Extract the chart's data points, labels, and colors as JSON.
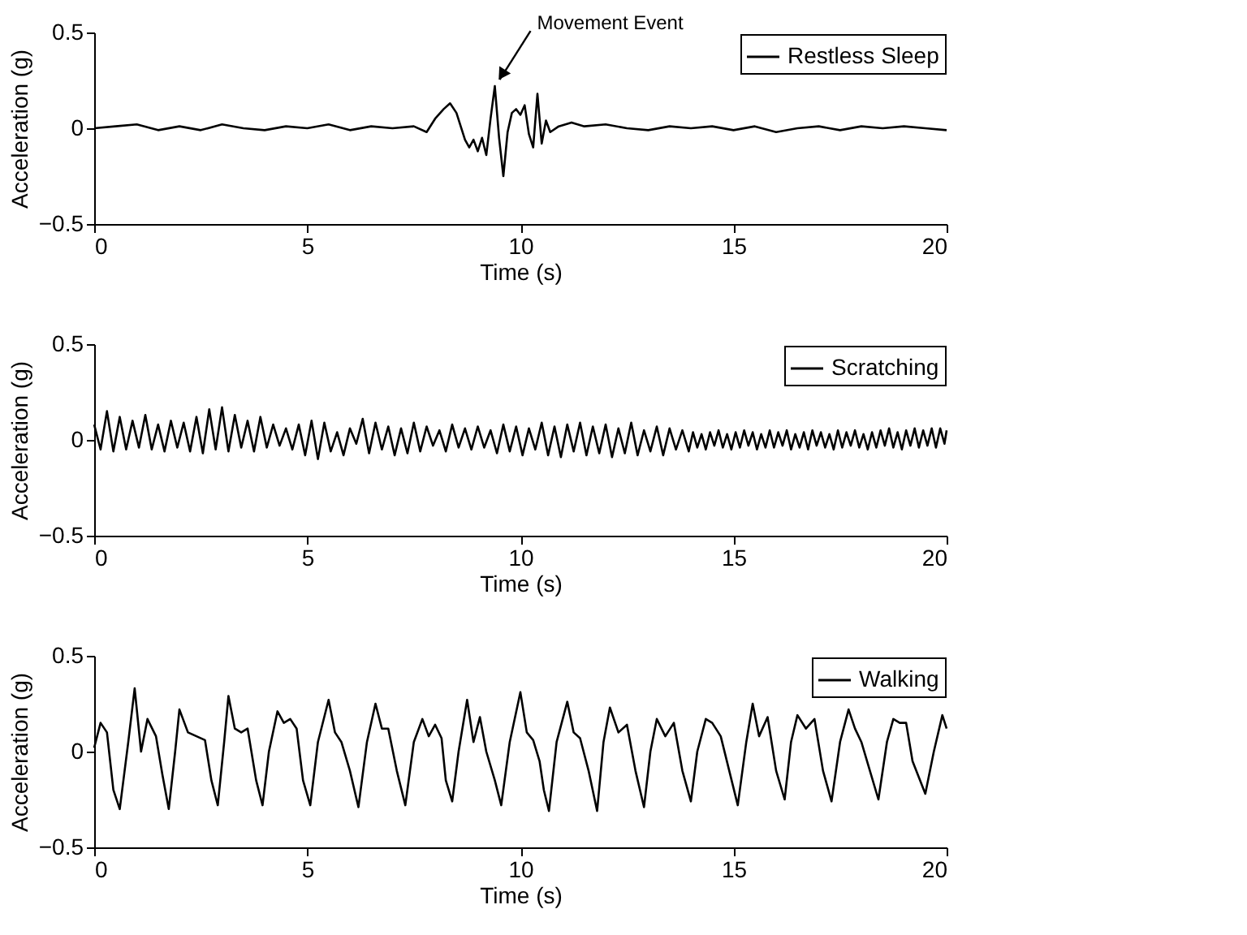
{
  "chart_data": [
    {
      "type": "line",
      "xlabel": "Time (s)",
      "ylabel": "Acceleration (g)",
      "xlim": [
        0,
        20
      ],
      "xticks": [
        0,
        5,
        10,
        15,
        20
      ],
      "ylim": [
        -0.5,
        0.5
      ],
      "yticks": [
        -0.5,
        0,
        0.5
      ],
      "grid": false,
      "legend": "top right",
      "annotations": [
        {
          "text": "Movement Event",
          "x": 9.4,
          "y": 0.22
        }
      ],
      "series": [
        {
          "name": "Restless Sleep",
          "color": "#000000",
          "x": [
            0,
            0.5,
            1.0,
            1.5,
            2.0,
            2.5,
            3.0,
            3.5,
            4.0,
            4.5,
            5.0,
            5.5,
            6.0,
            6.5,
            7.0,
            7.5,
            7.8,
            8.0,
            8.2,
            8.35,
            8.5,
            8.7,
            8.8,
            8.9,
            9.0,
            9.1,
            9.2,
            9.3,
            9.4,
            9.5,
            9.6,
            9.7,
            9.8,
            9.9,
            10.0,
            10.1,
            10.2,
            10.3,
            10.4,
            10.5,
            10.6,
            10.7,
            10.9,
            11.2,
            11.5,
            12,
            12.5,
            13,
            13.5,
            14,
            14.5,
            15,
            15.5,
            16,
            16.5,
            17,
            17.5,
            18,
            18.5,
            19,
            19.5,
            20
          ],
          "values": [
            0,
            0.01,
            0.02,
            -0.01,
            0.01,
            -0.01,
            0.02,
            0,
            -0.01,
            0.01,
            0,
            0.02,
            -0.01,
            0.01,
            0,
            0.01,
            -0.02,
            0.05,
            0.1,
            0.13,
            0.08,
            -0.06,
            -0.1,
            -0.06,
            -0.12,
            -0.05,
            -0.14,
            0.05,
            0.22,
            -0.05,
            -0.25,
            -0.02,
            0.08,
            0.1,
            0.07,
            0.12,
            -0.03,
            -0.1,
            0.18,
            -0.08,
            0.04,
            -0.02,
            0.01,
            0.03,
            0.01,
            0.02,
            0,
            -0.01,
            0.01,
            0,
            0.01,
            -0.01,
            0.01,
            -0.02,
            0,
            0.01,
            -0.01,
            0.01,
            0,
            0.01,
            0,
            -0.01
          ]
        }
      ]
    },
    {
      "type": "line",
      "xlabel": "Time (s)",
      "ylabel": "Acceleration (g)",
      "xlim": [
        0,
        20
      ],
      "xticks": [
        0,
        5,
        10,
        15,
        20
      ],
      "ylim": [
        -0.5,
        0.5
      ],
      "yticks": [
        -0.5,
        0,
        0.5
      ],
      "grid": false,
      "legend": "top right",
      "series": [
        {
          "name": "Scratching",
          "color": "#000000",
          "x": [
            0,
            0.15,
            0.3,
            0.45,
            0.6,
            0.75,
            0.9,
            1.05,
            1.2,
            1.35,
            1.5,
            1.65,
            1.8,
            1.95,
            2.1,
            2.25,
            2.4,
            2.55,
            2.7,
            2.85,
            3,
            3.15,
            3.3,
            3.45,
            3.6,
            3.75,
            3.9,
            4.05,
            4.2,
            4.35,
            4.5,
            4.65,
            4.8,
            4.95,
            5.1,
            5.25,
            5.4,
            5.55,
            5.7,
            5.85,
            6,
            6.15,
            6.3,
            6.45,
            6.6,
            6.75,
            6.9,
            7.05,
            7.2,
            7.35,
            7.5,
            7.65,
            7.8,
            7.95,
            8.1,
            8.25,
            8.4,
            8.55,
            8.7,
            8.85,
            9,
            9.15,
            9.3,
            9.45,
            9.6,
            9.75,
            9.9,
            10.05,
            10.2,
            10.35,
            10.5,
            10.65,
            10.8,
            10.95,
            11.1,
            11.25,
            11.4,
            11.55,
            11.7,
            11.85,
            12,
            12.15,
            12.3,
            12.45,
            12.6,
            12.75,
            12.9,
            13.05,
            13.2,
            13.35,
            13.5,
            13.65,
            13.8,
            13.95,
            14.05,
            14.15,
            14.25,
            14.35,
            14.45,
            14.55,
            14.65,
            14.75,
            14.85,
            14.95,
            15.05,
            15.15,
            15.25,
            15.35,
            15.45,
            15.55,
            15.65,
            15.75,
            15.85,
            15.95,
            16.05,
            16.15,
            16.25,
            16.35,
            16.45,
            16.55,
            16.65,
            16.75,
            16.85,
            16.95,
            17.05,
            17.15,
            17.25,
            17.35,
            17.45,
            17.55,
            17.65,
            17.75,
            17.85,
            17.95,
            18.05,
            18.15,
            18.25,
            18.35,
            18.45,
            18.55,
            18.65,
            18.75,
            18.85,
            18.95,
            19.05,
            19.15,
            19.25,
            19.35,
            19.45,
            19.55,
            19.65,
            19.75,
            19.85,
            19.95,
            20
          ],
          "values": [
            0.08,
            -0.05,
            0.15,
            -0.06,
            0.12,
            -0.05,
            0.1,
            -0.04,
            0.13,
            -0.05,
            0.08,
            -0.06,
            0.1,
            -0.04,
            0.09,
            -0.06,
            0.12,
            -0.07,
            0.16,
            -0.05,
            0.17,
            -0.06,
            0.13,
            -0.04,
            0.1,
            -0.06,
            0.12,
            -0.04,
            0.08,
            -0.03,
            0.06,
            -0.05,
            0.08,
            -0.08,
            0.1,
            -0.1,
            0.09,
            -0.06,
            0.04,
            -0.08,
            0.06,
            -0.02,
            0.11,
            -0.07,
            0.09,
            -0.05,
            0.07,
            -0.08,
            0.06,
            -0.07,
            0.09,
            -0.06,
            0.07,
            -0.03,
            0.05,
            -0.06,
            0.08,
            -0.04,
            0.06,
            -0.05,
            0.07,
            -0.04,
            0.05,
            -0.07,
            0.08,
            -0.06,
            0.07,
            -0.08,
            0.06,
            -0.05,
            0.09,
            -0.08,
            0.07,
            -0.09,
            0.08,
            -0.06,
            0.09,
            -0.08,
            0.07,
            -0.07,
            0.08,
            -0.09,
            0.06,
            -0.07,
            0.09,
            -0.08,
            0.05,
            -0.06,
            0.07,
            -0.08,
            0.06,
            -0.05,
            0.05,
            -0.06,
            0.04,
            -0.04,
            0.03,
            -0.05,
            0.04,
            -0.03,
            0.05,
            -0.04,
            0.03,
            -0.05,
            0.04,
            -0.04,
            0.05,
            -0.03,
            0.04,
            -0.05,
            0.03,
            -0.04,
            0.05,
            -0.04,
            0.04,
            -0.03,
            0.05,
            -0.05,
            0.03,
            -0.04,
            0.04,
            -0.05,
            0.05,
            -0.03,
            0.04,
            -0.04,
            0.03,
            -0.05,
            0.05,
            -0.04,
            0.04,
            -0.03,
            0.05,
            -0.04,
            0.03,
            -0.05,
            0.04,
            -0.04,
            0.05,
            -0.03,
            0.06,
            -0.04,
            0.04,
            -0.05,
            0.05,
            -0.03,
            0.06,
            -0.04,
            0.05,
            -0.03,
            0.06,
            -0.04,
            0.06,
            -0.02,
            0.05
          ]
        }
      ]
    },
    {
      "type": "line",
      "xlabel": "Time (s)",
      "ylabel": "Acceleration (g)",
      "xlim": [
        0,
        20
      ],
      "xticks": [
        0,
        5,
        10,
        15,
        20
      ],
      "ylim": [
        -0.5,
        0.5
      ],
      "yticks": [
        -0.5,
        0,
        0.5
      ],
      "grid": false,
      "legend": "top right",
      "series": [
        {
          "name": "Walking",
          "color": "#000000",
          "x": [
            0,
            0.15,
            0.3,
            0.45,
            0.6,
            0.8,
            0.95,
            1.1,
            1.25,
            1.45,
            1.6,
            1.75,
            1.9,
            2.0,
            2.2,
            2.4,
            2.6,
            2.75,
            2.9,
            3.05,
            3.15,
            3.3,
            3.45,
            3.6,
            3.8,
            3.95,
            4.1,
            4.3,
            4.45,
            4.6,
            4.75,
            4.9,
            5.07,
            5.25,
            5.5,
            5.65,
            5.8,
            6.0,
            6.2,
            6.4,
            6.6,
            6.75,
            6.9,
            7.1,
            7.3,
            7.5,
            7.7,
            7.85,
            8.0,
            8.15,
            8.25,
            8.4,
            8.55,
            8.75,
            8.9,
            9.05,
            9.2,
            9.4,
            9.55,
            9.75,
            10.0,
            10.15,
            10.3,
            10.45,
            10.55,
            10.67,
            10.85,
            11.1,
            11.25,
            11.4,
            11.6,
            11.8,
            11.95,
            12.1,
            12.3,
            12.5,
            12.7,
            12.9,
            13.05,
            13.2,
            13.4,
            13.6,
            13.8,
            14.0,
            14.15,
            14.35,
            14.5,
            14.7,
            14.9,
            15.1,
            15.3,
            15.45,
            15.6,
            15.8,
            16.0,
            16.2,
            16.35,
            16.5,
            16.7,
            16.9,
            17.1,
            17.3,
            17.5,
            17.7,
            17.85,
            18.0,
            18.2,
            18.4,
            18.6,
            18.75,
            18.9,
            19.05,
            19.2,
            19.5,
            19.7,
            19.9,
            20.0
          ],
          "values": [
            0.02,
            0.15,
            0.1,
            -0.2,
            -0.3,
            0.05,
            0.33,
            0.0,
            0.17,
            0.08,
            -0.12,
            -0.3,
            0.0,
            0.22,
            0.1,
            0.08,
            0.06,
            -0.15,
            -0.28,
            0.05,
            0.29,
            0.12,
            0.1,
            0.12,
            -0.15,
            -0.28,
            0.0,
            0.21,
            0.15,
            0.17,
            0.12,
            -0.15,
            -0.28,
            0.05,
            0.27,
            0.1,
            0.05,
            -0.1,
            -0.29,
            0.05,
            0.25,
            0.12,
            0.12,
            -0.1,
            -0.28,
            0.05,
            0.17,
            0.08,
            0.14,
            0.07,
            -0.15,
            -0.26,
            0.0,
            0.27,
            0.05,
            0.18,
            0.0,
            -0.15,
            -0.28,
            0.05,
            0.31,
            0.1,
            0.06,
            -0.05,
            -0.2,
            -0.31,
            0.05,
            0.26,
            0.1,
            0.07,
            -0.1,
            -0.31,
            0.05,
            0.23,
            0.1,
            0.14,
            -0.1,
            -0.29,
            0.0,
            0.17,
            0.08,
            0.15,
            -0.1,
            -0.26,
            0.0,
            0.17,
            0.15,
            0.08,
            -0.1,
            -0.28,
            0.05,
            0.25,
            0.08,
            0.18,
            -0.1,
            -0.25,
            0.05,
            0.19,
            0.12,
            0.17,
            -0.1,
            -0.26,
            0.05,
            0.22,
            0.12,
            0.05,
            -0.1,
            -0.25,
            0.05,
            0.17,
            0.15,
            0.15,
            -0.05,
            -0.22,
            0.0,
            0.19,
            0.12
          ]
        }
      ]
    }
  ]
}
